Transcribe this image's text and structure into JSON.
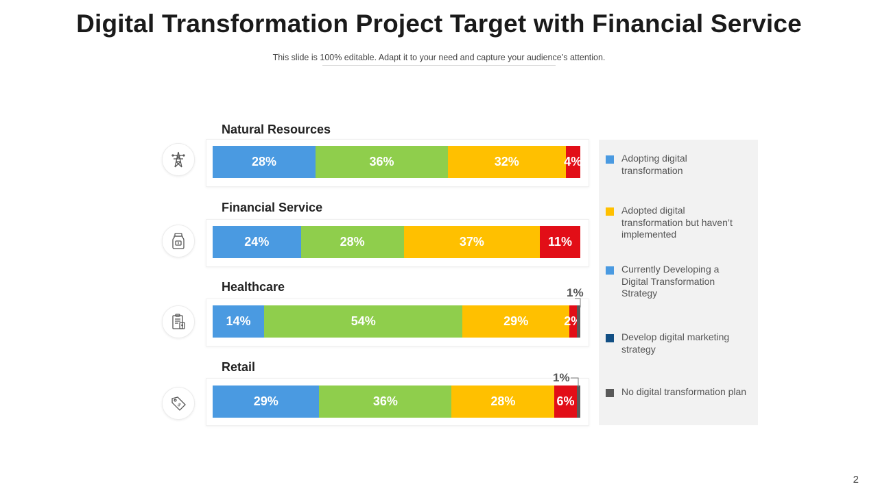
{
  "title": "Digital Transformation Project Target with Financial Service",
  "subtitle": "This slide is 100% editable. Adapt it to your need and capture your audience’s attention.",
  "page_number": "2",
  "colors": {
    "adopting": "#4a9ae1",
    "adopted_not_impl": "#8fce4c",
    "developing": "#ffc000",
    "marketing": "#e20e17",
    "no_plan": "#595959",
    "legend_developing": "#4a9ae1",
    "legend_marketing": "#124f84"
  },
  "chart_data": {
    "type": "bar",
    "orientation": "horizontal-stacked-100",
    "title": "Digital Transformation Project Target with Financial Service",
    "categories": [
      "Natural Resources",
      "Financial Service",
      "Healthcare",
      "Retail"
    ],
    "category_icons": [
      "power-tower-icon",
      "money-jar-icon",
      "clipboard-icon",
      "price-tag-icon"
    ],
    "series_colors": [
      "#4a9ae1",
      "#8fce4c",
      "#ffc000",
      "#e20e17",
      "#595959"
    ],
    "rows": [
      {
        "name": "Natural Resources",
        "values": [
          28,
          36,
          32,
          4,
          0
        ],
        "labels": [
          "28%",
          "36%",
          "32%",
          "4%",
          ""
        ]
      },
      {
        "name": "Financial Service",
        "values": [
          24,
          28,
          37,
          11,
          0
        ],
        "labels": [
          "24%",
          "28%",
          "37%",
          "11%",
          ""
        ]
      },
      {
        "name": "Healthcare",
        "values": [
          14,
          54,
          29,
          2,
          1
        ],
        "labels": [
          "14%",
          "54%",
          "29%",
          "2%",
          ""
        ],
        "callout": "1%"
      },
      {
        "name": "Retail",
        "values": [
          29,
          36,
          28,
          6,
          1
        ],
        "labels": [
          "29%",
          "36%",
          "28%",
          "6%",
          ""
        ],
        "callout": "1%"
      }
    ],
    "legend": [
      {
        "label": "Adopting digital transformation",
        "color": "#4a9ae1"
      },
      {
        "label": "Adopted digital transformation but haven’t implemented",
        "color": "#ffc000"
      },
      {
        "label": "Currently Developing a Digital Transformation Strategy",
        "color": "#4a9ae1"
      },
      {
        "label": "Develop digital marketing strategy",
        "color": "#124f84"
      },
      {
        "label": "No digital transformation plan",
        "color": "#595959"
      }
    ],
    "legend_position": "right"
  }
}
